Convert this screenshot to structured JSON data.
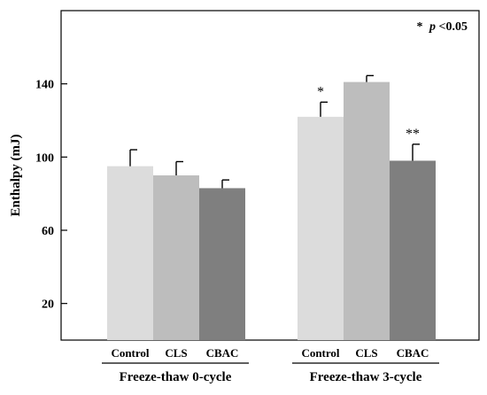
{
  "chart_data": {
    "type": "bar",
    "title": "",
    "ylabel": "Enthalpy (mJ)",
    "xlabel": "",
    "ylim": [
      0,
      180
    ],
    "yticks": [
      20,
      60,
      100,
      140
    ],
    "annotation_symbol": "*",
    "annotation_p": "p",
    "annotation_rest": "<0.05",
    "groups": [
      {
        "label": "Freeze-thaw  0-cycle",
        "bars": [
          {
            "category": "Control",
            "value": 95,
            "error": 9,
            "sig": "",
            "color": "#dcdcdc"
          },
          {
            "category": "CLS",
            "value": 90,
            "error": 7.5,
            "sig": "",
            "color": "#bdbdbd"
          },
          {
            "category": "CBAC",
            "value": 83,
            "error": 4.5,
            "sig": "",
            "color": "#7f7f7f"
          }
        ]
      },
      {
        "label": "Freeze-thaw  3-cycle",
        "bars": [
          {
            "category": "Control",
            "value": 122,
            "error": 8,
            "sig": "*",
            "color": "#dcdcdc"
          },
          {
            "category": "CLS",
            "value": 141,
            "error": 3.5,
            "sig": "",
            "color": "#bdbdbd"
          },
          {
            "category": "CBAC",
            "value": 98,
            "error": 9,
            "sig": "**",
            "color": "#7f7f7f"
          }
        ]
      }
    ]
  }
}
